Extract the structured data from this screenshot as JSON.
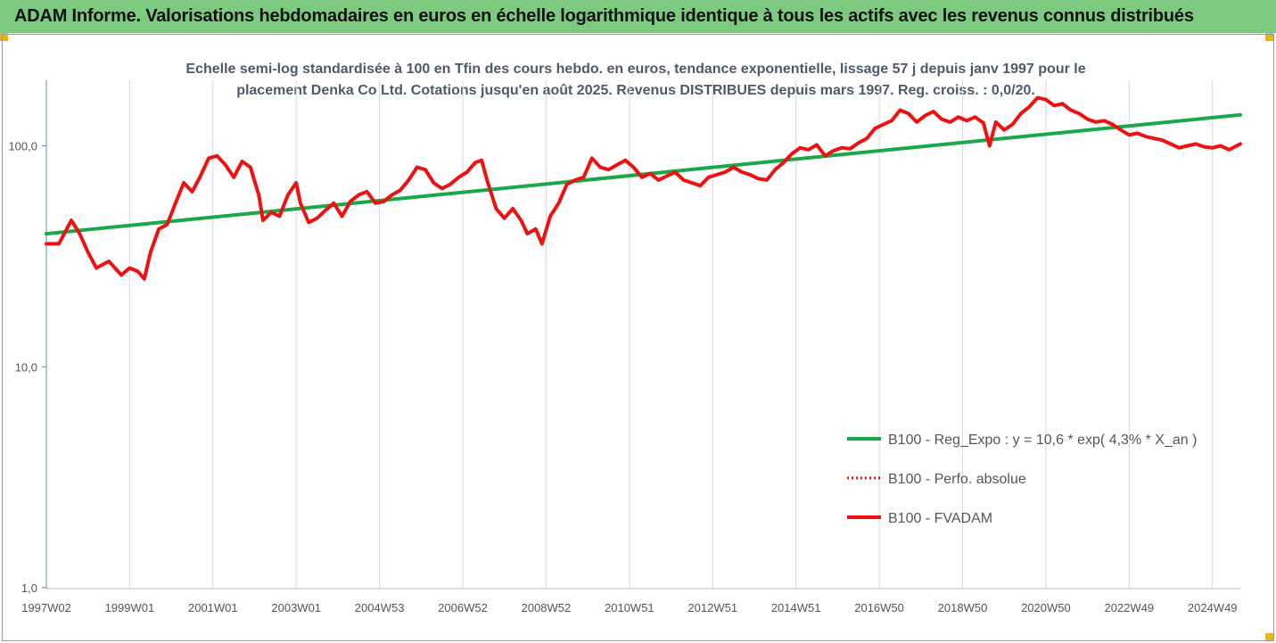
{
  "header": {
    "title": "ADAM Informe. Valorisations hebdomadaires en euros en échelle logarithmique identique à tous les actifs avec les revenus connus distribués"
  },
  "colors": {
    "banner": "#7dc97f",
    "corner": "#f2b400",
    "trend": "#1aa84a",
    "series": "#ee1111",
    "grid": "#d9d9d9"
  },
  "chart_data": {
    "type": "line",
    "subtitle_lines": [
      "Echelle semi-log standardisée à 100 en Tfin des cours hebdo. en euros, tendance exponentielle, lissage 57 j depuis janv 1997 pour le",
      "placement Denka Co Ltd. Cotations jusqu'en août 2025.  Revenus DISTRIBUES depuis mars 1997. Reg. croiss. : 0,0/20."
    ],
    "y_scale": "log",
    "ylim": [
      1,
      200
    ],
    "y_ticks": [
      {
        "value": 100,
        "label": "100,0"
      },
      {
        "value": 10,
        "label": "10,0"
      },
      {
        "value": 1,
        "label": "1,0"
      }
    ],
    "xlim": [
      1997.0,
      2025.67
    ],
    "x_ticks": [
      {
        "value": 1997.0,
        "label": "1997W02"
      },
      {
        "value": 1999.0,
        "label": "1999W01"
      },
      {
        "value": 2001.0,
        "label": "2001W01"
      },
      {
        "value": 2003.0,
        "label": "2003W01"
      },
      {
        "value": 2005.0,
        "label": "2004W53"
      },
      {
        "value": 2007.0,
        "label": "2006W52"
      },
      {
        "value": 2009.0,
        "label": "2008W52"
      },
      {
        "value": 2011.0,
        "label": "2010W51"
      },
      {
        "value": 2013.0,
        "label": "2012W51"
      },
      {
        "value": 2015.0,
        "label": "2014W51"
      },
      {
        "value": 2017.0,
        "label": "2016W50"
      },
      {
        "value": 2019.0,
        "label": "2018W50"
      },
      {
        "value": 2021.0,
        "label": "2020W50"
      },
      {
        "value": 2023.0,
        "label": "2022W49"
      },
      {
        "value": 2025.0,
        "label": "2024W49"
      }
    ],
    "grid": "vertical",
    "legend_position": "bottom-right",
    "series": [
      {
        "name": "B100 - Reg_Expo : y = 10,6 * exp( 4,3% *  X_an )",
        "color": "#1aa84a",
        "style": "solid",
        "points": [
          [
            1997.0,
            40
          ],
          [
            2025.67,
            138
          ]
        ]
      },
      {
        "name": "B100 - Perfo. absolue",
        "color": "#ee1111",
        "style": "dotted",
        "points": []
      },
      {
        "name": "B100 - FVADAM",
        "color": "#ee1111",
        "style": "solid",
        "points": [
          [
            1997.0,
            36
          ],
          [
            1997.3,
            36
          ],
          [
            1997.6,
            46
          ],
          [
            1997.8,
            40
          ],
          [
            1998.0,
            33
          ],
          [
            1998.2,
            28
          ],
          [
            1998.5,
            30
          ],
          [
            1998.8,
            26
          ],
          [
            1999.0,
            28
          ],
          [
            1999.2,
            27
          ],
          [
            1999.35,
            25
          ],
          [
            1999.5,
            33
          ],
          [
            1999.7,
            42
          ],
          [
            1999.9,
            44
          ],
          [
            2000.1,
            55
          ],
          [
            2000.3,
            68
          ],
          [
            2000.5,
            62
          ],
          [
            2000.7,
            73
          ],
          [
            2000.9,
            88
          ],
          [
            2001.1,
            90
          ],
          [
            2001.3,
            82
          ],
          [
            2001.5,
            72
          ],
          [
            2001.7,
            85
          ],
          [
            2001.9,
            80
          ],
          [
            2002.1,
            60
          ],
          [
            2002.2,
            46
          ],
          [
            2002.4,
            50
          ],
          [
            2002.6,
            48
          ],
          [
            2002.8,
            60
          ],
          [
            2003.0,
            68
          ],
          [
            2003.1,
            55
          ],
          [
            2003.3,
            45
          ],
          [
            2003.5,
            47
          ],
          [
            2003.7,
            51
          ],
          [
            2003.9,
            55
          ],
          [
            2004.1,
            48
          ],
          [
            2004.3,
            56
          ],
          [
            2004.5,
            60
          ],
          [
            2004.7,
            62
          ],
          [
            2004.9,
            55
          ],
          [
            2005.1,
            56
          ],
          [
            2005.3,
            60
          ],
          [
            2005.5,
            63
          ],
          [
            2005.7,
            70
          ],
          [
            2005.9,
            80
          ],
          [
            2006.1,
            78
          ],
          [
            2006.3,
            68
          ],
          [
            2006.5,
            64
          ],
          [
            2006.7,
            67
          ],
          [
            2006.9,
            72
          ],
          [
            2007.1,
            76
          ],
          [
            2007.3,
            84
          ],
          [
            2007.45,
            86
          ],
          [
            2007.6,
            68
          ],
          [
            2007.8,
            52
          ],
          [
            2008.0,
            47
          ],
          [
            2008.2,
            52
          ],
          [
            2008.4,
            46
          ],
          [
            2008.55,
            40
          ],
          [
            2008.75,
            42
          ],
          [
            2008.9,
            36
          ],
          [
            2009.1,
            48
          ],
          [
            2009.3,
            55
          ],
          [
            2009.5,
            67
          ],
          [
            2009.7,
            70
          ],
          [
            2009.9,
            72
          ],
          [
            2010.1,
            88
          ],
          [
            2010.3,
            80
          ],
          [
            2010.5,
            78
          ],
          [
            2010.7,
            82
          ],
          [
            2010.9,
            86
          ],
          [
            2011.1,
            80
          ],
          [
            2011.3,
            72
          ],
          [
            2011.5,
            75
          ],
          [
            2011.7,
            70
          ],
          [
            2011.9,
            73
          ],
          [
            2012.1,
            76
          ],
          [
            2012.3,
            70
          ],
          [
            2012.5,
            68
          ],
          [
            2012.7,
            66
          ],
          [
            2012.9,
            72
          ],
          [
            2013.1,
            74
          ],
          [
            2013.3,
            76
          ],
          [
            2013.5,
            80
          ],
          [
            2013.7,
            76
          ],
          [
            2013.9,
            74
          ],
          [
            2014.1,
            71
          ],
          [
            2014.3,
            70
          ],
          [
            2014.5,
            78
          ],
          [
            2014.7,
            84
          ],
          [
            2014.9,
            92
          ],
          [
            2015.1,
            98
          ],
          [
            2015.3,
            96
          ],
          [
            2015.5,
            101
          ],
          [
            2015.7,
            90
          ],
          [
            2015.9,
            95
          ],
          [
            2016.1,
            98
          ],
          [
            2016.3,
            97
          ],
          [
            2016.5,
            103
          ],
          [
            2016.7,
            108
          ],
          [
            2016.9,
            120
          ],
          [
            2017.1,
            125
          ],
          [
            2017.3,
            130
          ],
          [
            2017.5,
            145
          ],
          [
            2017.7,
            140
          ],
          [
            2017.9,
            128
          ],
          [
            2018.1,
            137
          ],
          [
            2018.3,
            143
          ],
          [
            2018.5,
            132
          ],
          [
            2018.7,
            128
          ],
          [
            2018.9,
            135
          ],
          [
            2019.1,
            130
          ],
          [
            2019.3,
            135
          ],
          [
            2019.5,
            127
          ],
          [
            2019.65,
            100
          ],
          [
            2019.8,
            128
          ],
          [
            2020.0,
            118
          ],
          [
            2020.2,
            125
          ],
          [
            2020.4,
            140
          ],
          [
            2020.6,
            150
          ],
          [
            2020.8,
            165
          ],
          [
            2021.0,
            162
          ],
          [
            2021.2,
            152
          ],
          [
            2021.4,
            155
          ],
          [
            2021.6,
            145
          ],
          [
            2021.8,
            140
          ],
          [
            2022.0,
            132
          ],
          [
            2022.2,
            128
          ],
          [
            2022.4,
            130
          ],
          [
            2022.6,
            125
          ],
          [
            2022.8,
            118
          ],
          [
            2023.0,
            112
          ],
          [
            2023.2,
            114
          ],
          [
            2023.4,
            110
          ],
          [
            2023.6,
            108
          ],
          [
            2023.8,
            106
          ],
          [
            2024.0,
            102
          ],
          [
            2024.2,
            98
          ],
          [
            2024.4,
            100
          ],
          [
            2024.6,
            102
          ],
          [
            2024.8,
            99
          ],
          [
            2025.0,
            98
          ],
          [
            2025.2,
            100
          ],
          [
            2025.4,
            96
          ],
          [
            2025.67,
            102
          ]
        ]
      }
    ]
  }
}
